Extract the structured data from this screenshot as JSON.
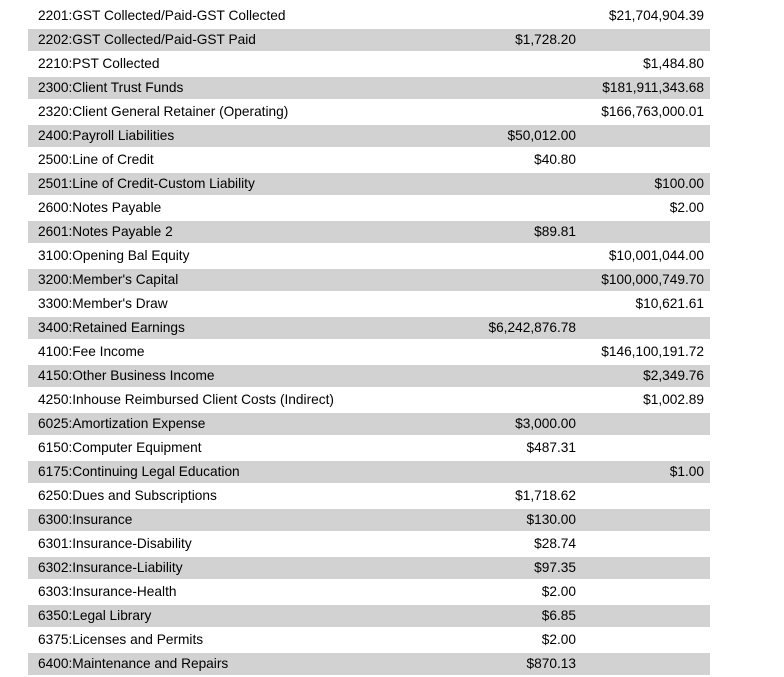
{
  "colors": {
    "background": "#ffffff",
    "row_alt_bg": "#d2d2d2",
    "text": "#000000"
  },
  "report": {
    "rows": [
      {
        "label": "2201:GST Collected/Paid-GST Collected",
        "amount_mid": "",
        "amount_right": "$21,704,904.39"
      },
      {
        "label": "2202:GST Collected/Paid-GST Paid",
        "amount_mid": "$1,728.20",
        "amount_right": ""
      },
      {
        "label": "2210:PST Collected",
        "amount_mid": "",
        "amount_right": "$1,484.80"
      },
      {
        "label": "2300:Client Trust Funds",
        "amount_mid": "",
        "amount_right": "$181,911,343.68"
      },
      {
        "label": "2320:Client General Retainer (Operating)",
        "amount_mid": "",
        "amount_right": "$166,763,000.01"
      },
      {
        "label": "2400:Payroll Liabilities",
        "amount_mid": "$50,012.00",
        "amount_right": ""
      },
      {
        "label": "2500:Line of Credit",
        "amount_mid": "$40.80",
        "amount_right": ""
      },
      {
        "label": "2501:Line of Credit-Custom Liability",
        "amount_mid": "",
        "amount_right": "$100.00"
      },
      {
        "label": "2600:Notes Payable",
        "amount_mid": "",
        "amount_right": "$2.00"
      },
      {
        "label": "2601:Notes Payable 2",
        "amount_mid": "$89.81",
        "amount_right": ""
      },
      {
        "label": "3100:Opening Bal Equity",
        "amount_mid": "",
        "amount_right": "$10,001,044.00"
      },
      {
        "label": "3200:Member's Capital",
        "amount_mid": "",
        "amount_right": "$100,000,749.70"
      },
      {
        "label": "3300:Member's Draw",
        "amount_mid": "",
        "amount_right": "$10,621.61"
      },
      {
        "label": "3400:Retained Earnings",
        "amount_mid": "$6,242,876.78",
        "amount_right": ""
      },
      {
        "label": "4100:Fee Income",
        "amount_mid": "",
        "amount_right": "$146,100,191.72"
      },
      {
        "label": "4150:Other Business Income",
        "amount_mid": "",
        "amount_right": "$2,349.76"
      },
      {
        "label": "4250:Inhouse Reimbursed Client Costs (Indirect)",
        "amount_mid": "",
        "amount_right": "$1,002.89"
      },
      {
        "label": "6025:Amortization Expense",
        "amount_mid": "$3,000.00",
        "amount_right": ""
      },
      {
        "label": "6150:Computer Equipment",
        "amount_mid": "$487.31",
        "amount_right": ""
      },
      {
        "label": "6175:Continuing Legal Education",
        "amount_mid": "",
        "amount_right": "$1.00"
      },
      {
        "label": "6250:Dues and Subscriptions",
        "amount_mid": "$1,718.62",
        "amount_right": ""
      },
      {
        "label": "6300:Insurance",
        "amount_mid": "$130.00",
        "amount_right": ""
      },
      {
        "label": "6301:Insurance-Disability",
        "amount_mid": "$28.74",
        "amount_right": ""
      },
      {
        "label": "6302:Insurance-Liability",
        "amount_mid": "$97.35",
        "amount_right": ""
      },
      {
        "label": "6303:Insurance-Health",
        "amount_mid": "$2.00",
        "amount_right": ""
      },
      {
        "label": "6350:Legal Library",
        "amount_mid": "$6.85",
        "amount_right": ""
      },
      {
        "label": "6375:Licenses and Permits",
        "amount_mid": "$2.00",
        "amount_right": ""
      },
      {
        "label": "6400:Maintenance and Repairs",
        "amount_mid": "$870.13",
        "amount_right": ""
      }
    ]
  }
}
